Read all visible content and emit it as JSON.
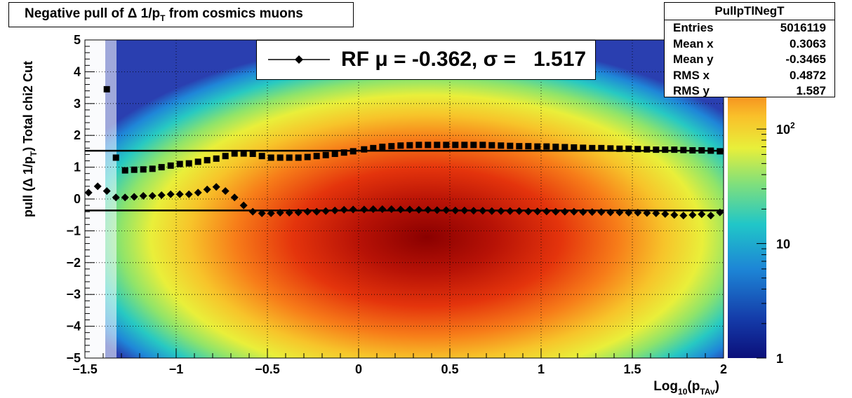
{
  "title": "Negative pull of Δ 1/pT from cosmics muons",
  "stats": {
    "name": "PullpTlNegT",
    "rows": [
      {
        "label": "Entries",
        "value": "5016119"
      },
      {
        "label": "Mean x",
        "value": "0.3063"
      },
      {
        "label": "Mean y",
        "value": "-0.3465"
      },
      {
        "label": "RMS x",
        "value": "0.4872"
      },
      {
        "label": "RMS y",
        "value": "1.587"
      }
    ]
  },
  "legend": {
    "text": "RF μ = -0.362, σ =   1.517"
  },
  "colors": {
    "mean_marker": "#000000",
    "sigma_marker": "#000000",
    "reference_lines": "#000000"
  },
  "chart_data": {
    "type": "heatmap",
    "title": "Negative pull of Δ 1/pT from cosmics muons",
    "xlabel": "Log10(pTAv)",
    "ylabel": "pull (Δ 1/pT)  Total chi2 Cut",
    "xlim": [
      -1.5,
      2
    ],
    "ylim": [
      -5,
      5
    ],
    "x_ticks": [
      "-1.5",
      "-1",
      "-0.5",
      "0",
      "0.5",
      "1",
      "1.5",
      "2"
    ],
    "y_ticks": [
      "-5",
      "-4",
      "-3",
      "-2",
      "-1",
      "0",
      "1",
      "2",
      "3",
      "4",
      "5"
    ],
    "z_scale": "log",
    "z_ticks": [
      "1",
      "10",
      "10^2"
    ],
    "grid": true,
    "reference_lines": [
      {
        "name": "RF μ",
        "y": -0.362
      },
      {
        "name": "RF σ",
        "y": 1.517
      }
    ],
    "series": [
      {
        "name": "mean",
        "marker": "diamond",
        "x": [
          -1.48,
          -1.43,
          -1.38,
          -1.33,
          -1.28,
          -1.23,
          -1.18,
          -1.13,
          -1.08,
          -1.03,
          -0.98,
          -0.93,
          -0.88,
          -0.83,
          -0.78,
          -0.73,
          -0.68,
          -0.63,
          -0.58,
          -0.53,
          -0.48,
          -0.43,
          -0.38,
          -0.33,
          -0.28,
          -0.23,
          -0.18,
          -0.13,
          -0.08,
          -0.03,
          0.03,
          0.08,
          0.13,
          0.18,
          0.23,
          0.28,
          0.33,
          0.38,
          0.43,
          0.48,
          0.53,
          0.58,
          0.63,
          0.68,
          0.73,
          0.78,
          0.83,
          0.88,
          0.93,
          0.98,
          1.03,
          1.08,
          1.13,
          1.18,
          1.23,
          1.28,
          1.33,
          1.38,
          1.43,
          1.48,
          1.53,
          1.58,
          1.63,
          1.68,
          1.73,
          1.78,
          1.83,
          1.88,
          1.93,
          1.98
        ],
        "y": [
          0.2,
          0.4,
          0.25,
          0.05,
          0.05,
          0.07,
          0.1,
          0.1,
          0.12,
          0.15,
          0.15,
          0.15,
          0.2,
          0.3,
          0.38,
          0.25,
          0.05,
          -0.2,
          -0.4,
          -0.45,
          -0.45,
          -0.43,
          -0.43,
          -0.42,
          -0.4,
          -0.4,
          -0.38,
          -0.36,
          -0.34,
          -0.33,
          -0.33,
          -0.32,
          -0.32,
          -0.32,
          -0.33,
          -0.33,
          -0.34,
          -0.34,
          -0.35,
          -0.35,
          -0.36,
          -0.36,
          -0.37,
          -0.37,
          -0.38,
          -0.38,
          -0.38,
          -0.38,
          -0.39,
          -0.39,
          -0.39,
          -0.4,
          -0.4,
          -0.4,
          -0.41,
          -0.41,
          -0.41,
          -0.42,
          -0.42,
          -0.43,
          -0.43,
          -0.44,
          -0.45,
          -0.47,
          -0.5,
          -0.52,
          -0.5,
          -0.48,
          -0.52,
          -0.42
        ]
      },
      {
        "name": "sigma",
        "marker": "square",
        "x": [
          -1.38,
          -1.33,
          -1.28,
          -1.23,
          -1.18,
          -1.13,
          -1.08,
          -1.03,
          -0.98,
          -0.93,
          -0.88,
          -0.83,
          -0.78,
          -0.73,
          -0.68,
          -0.63,
          -0.58,
          -0.53,
          -0.48,
          -0.43,
          -0.38,
          -0.33,
          -0.28,
          -0.23,
          -0.18,
          -0.13,
          -0.08,
          -0.03,
          0.03,
          0.08,
          0.13,
          0.18,
          0.23,
          0.28,
          0.33,
          0.38,
          0.43,
          0.48,
          0.53,
          0.58,
          0.63,
          0.68,
          0.73,
          0.78,
          0.83,
          0.88,
          0.93,
          0.98,
          1.03,
          1.08,
          1.13,
          1.18,
          1.23,
          1.28,
          1.33,
          1.38,
          1.43,
          1.48,
          1.53,
          1.58,
          1.63,
          1.68,
          1.73,
          1.78,
          1.83,
          1.88,
          1.93,
          1.98
        ],
        "y": [
          3.45,
          1.3,
          0.9,
          0.92,
          0.93,
          0.95,
          1.0,
          1.05,
          1.1,
          1.12,
          1.17,
          1.22,
          1.27,
          1.35,
          1.43,
          1.43,
          1.42,
          1.35,
          1.3,
          1.3,
          1.3,
          1.3,
          1.32,
          1.35,
          1.38,
          1.42,
          1.46,
          1.5,
          1.56,
          1.6,
          1.64,
          1.66,
          1.68,
          1.69,
          1.7,
          1.7,
          1.7,
          1.7,
          1.7,
          1.7,
          1.7,
          1.7,
          1.69,
          1.68,
          1.67,
          1.66,
          1.66,
          1.65,
          1.65,
          1.64,
          1.63,
          1.62,
          1.61,
          1.6,
          1.6,
          1.59,
          1.58,
          1.58,
          1.57,
          1.56,
          1.55,
          1.55,
          1.55,
          1.54,
          1.53,
          1.53,
          1.52,
          1.5
        ]
      }
    ]
  }
}
